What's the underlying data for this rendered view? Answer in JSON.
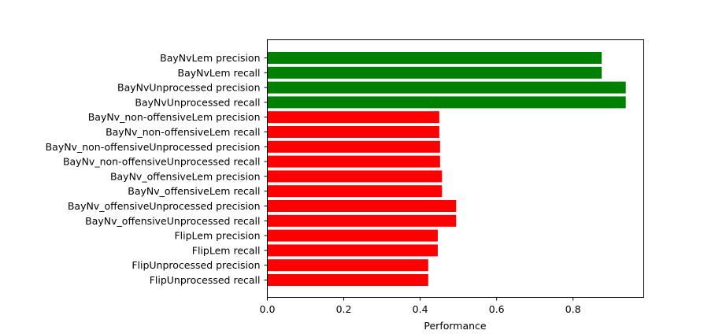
{
  "chart_data": {
    "type": "bar",
    "orientation": "horizontal",
    "title": "",
    "xlabel": "Performance",
    "ylabel": "",
    "xlim": [
      0,
      0.985
    ],
    "xticks": [
      0.0,
      0.2,
      0.4,
      0.6,
      0.8
    ],
    "xtick_labels": [
      "0.0",
      "0.2",
      "0.4",
      "0.6",
      "0.8"
    ],
    "grid": false,
    "categories": [
      "BayNvLem precision",
      "BayNvLem recall",
      "BayNvUnprocessed precision",
      "BayNvUnprocessed recall",
      "BayNv_non-offensiveLem precision",
      "BayNv_non-offensiveLem recall",
      "BayNv_non-offensiveUnprocessed precision",
      "BayNv_non-offensiveUnprocessed recall",
      "BayNv_offensiveLem precision",
      "BayNv_offensiveLem recall",
      "BayNv_offensiveUnprocessed precision",
      "BayNv_offensiveUnprocessed recall",
      "FlipLem precision",
      "FlipLem recall",
      "FlipUnprocessed precision",
      "FlipUnprocessed recall"
    ],
    "values": [
      0.875,
      0.875,
      0.938,
      0.938,
      0.45,
      0.45,
      0.452,
      0.452,
      0.457,
      0.457,
      0.494,
      0.494,
      0.446,
      0.446,
      0.421,
      0.421
    ],
    "colors": [
      "#008000",
      "#008000",
      "#008000",
      "#008000",
      "#ff0000",
      "#ff0000",
      "#ff0000",
      "#ff0000",
      "#ff0000",
      "#ff0000",
      "#ff0000",
      "#ff0000",
      "#ff0000",
      "#ff0000",
      "#ff0000",
      "#ff0000"
    ]
  }
}
